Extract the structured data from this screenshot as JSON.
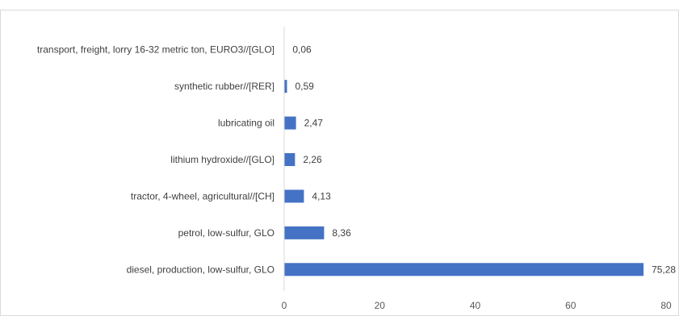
{
  "chart_data": {
    "type": "bar",
    "orientation": "horizontal",
    "categories": [
      "transport, freight, lorry 16-32 metric ton, EURO3//[GLO]",
      "synthetic rubber//[RER]",
      "lubricating oil",
      "lithium hydroxide//[GLO]",
      "tractor, 4-wheel, agricultural//[CH]",
      "petrol, low-sulfur, GLO",
      "diesel, production, low-sulfur, GLO"
    ],
    "values": [
      0.06,
      0.59,
      2.47,
      2.26,
      4.13,
      8.36,
      75.28
    ],
    "value_labels": [
      "0,06",
      "0,59",
      "2,47",
      "2,26",
      "4,13",
      "8,36",
      "75,28"
    ],
    "xlim": [
      0,
      80
    ],
    "xticks": [
      0,
      20,
      40,
      60,
      80
    ],
    "xtick_labels": [
      "0",
      "20",
      "40",
      "60",
      "80"
    ],
    "title": "",
    "xlabel": "",
    "ylabel": "",
    "grid": false,
    "legend": "none",
    "colors": {
      "bar": "#4472C4",
      "axis": "#D9D9D9",
      "border": "#D9D9D9"
    }
  }
}
